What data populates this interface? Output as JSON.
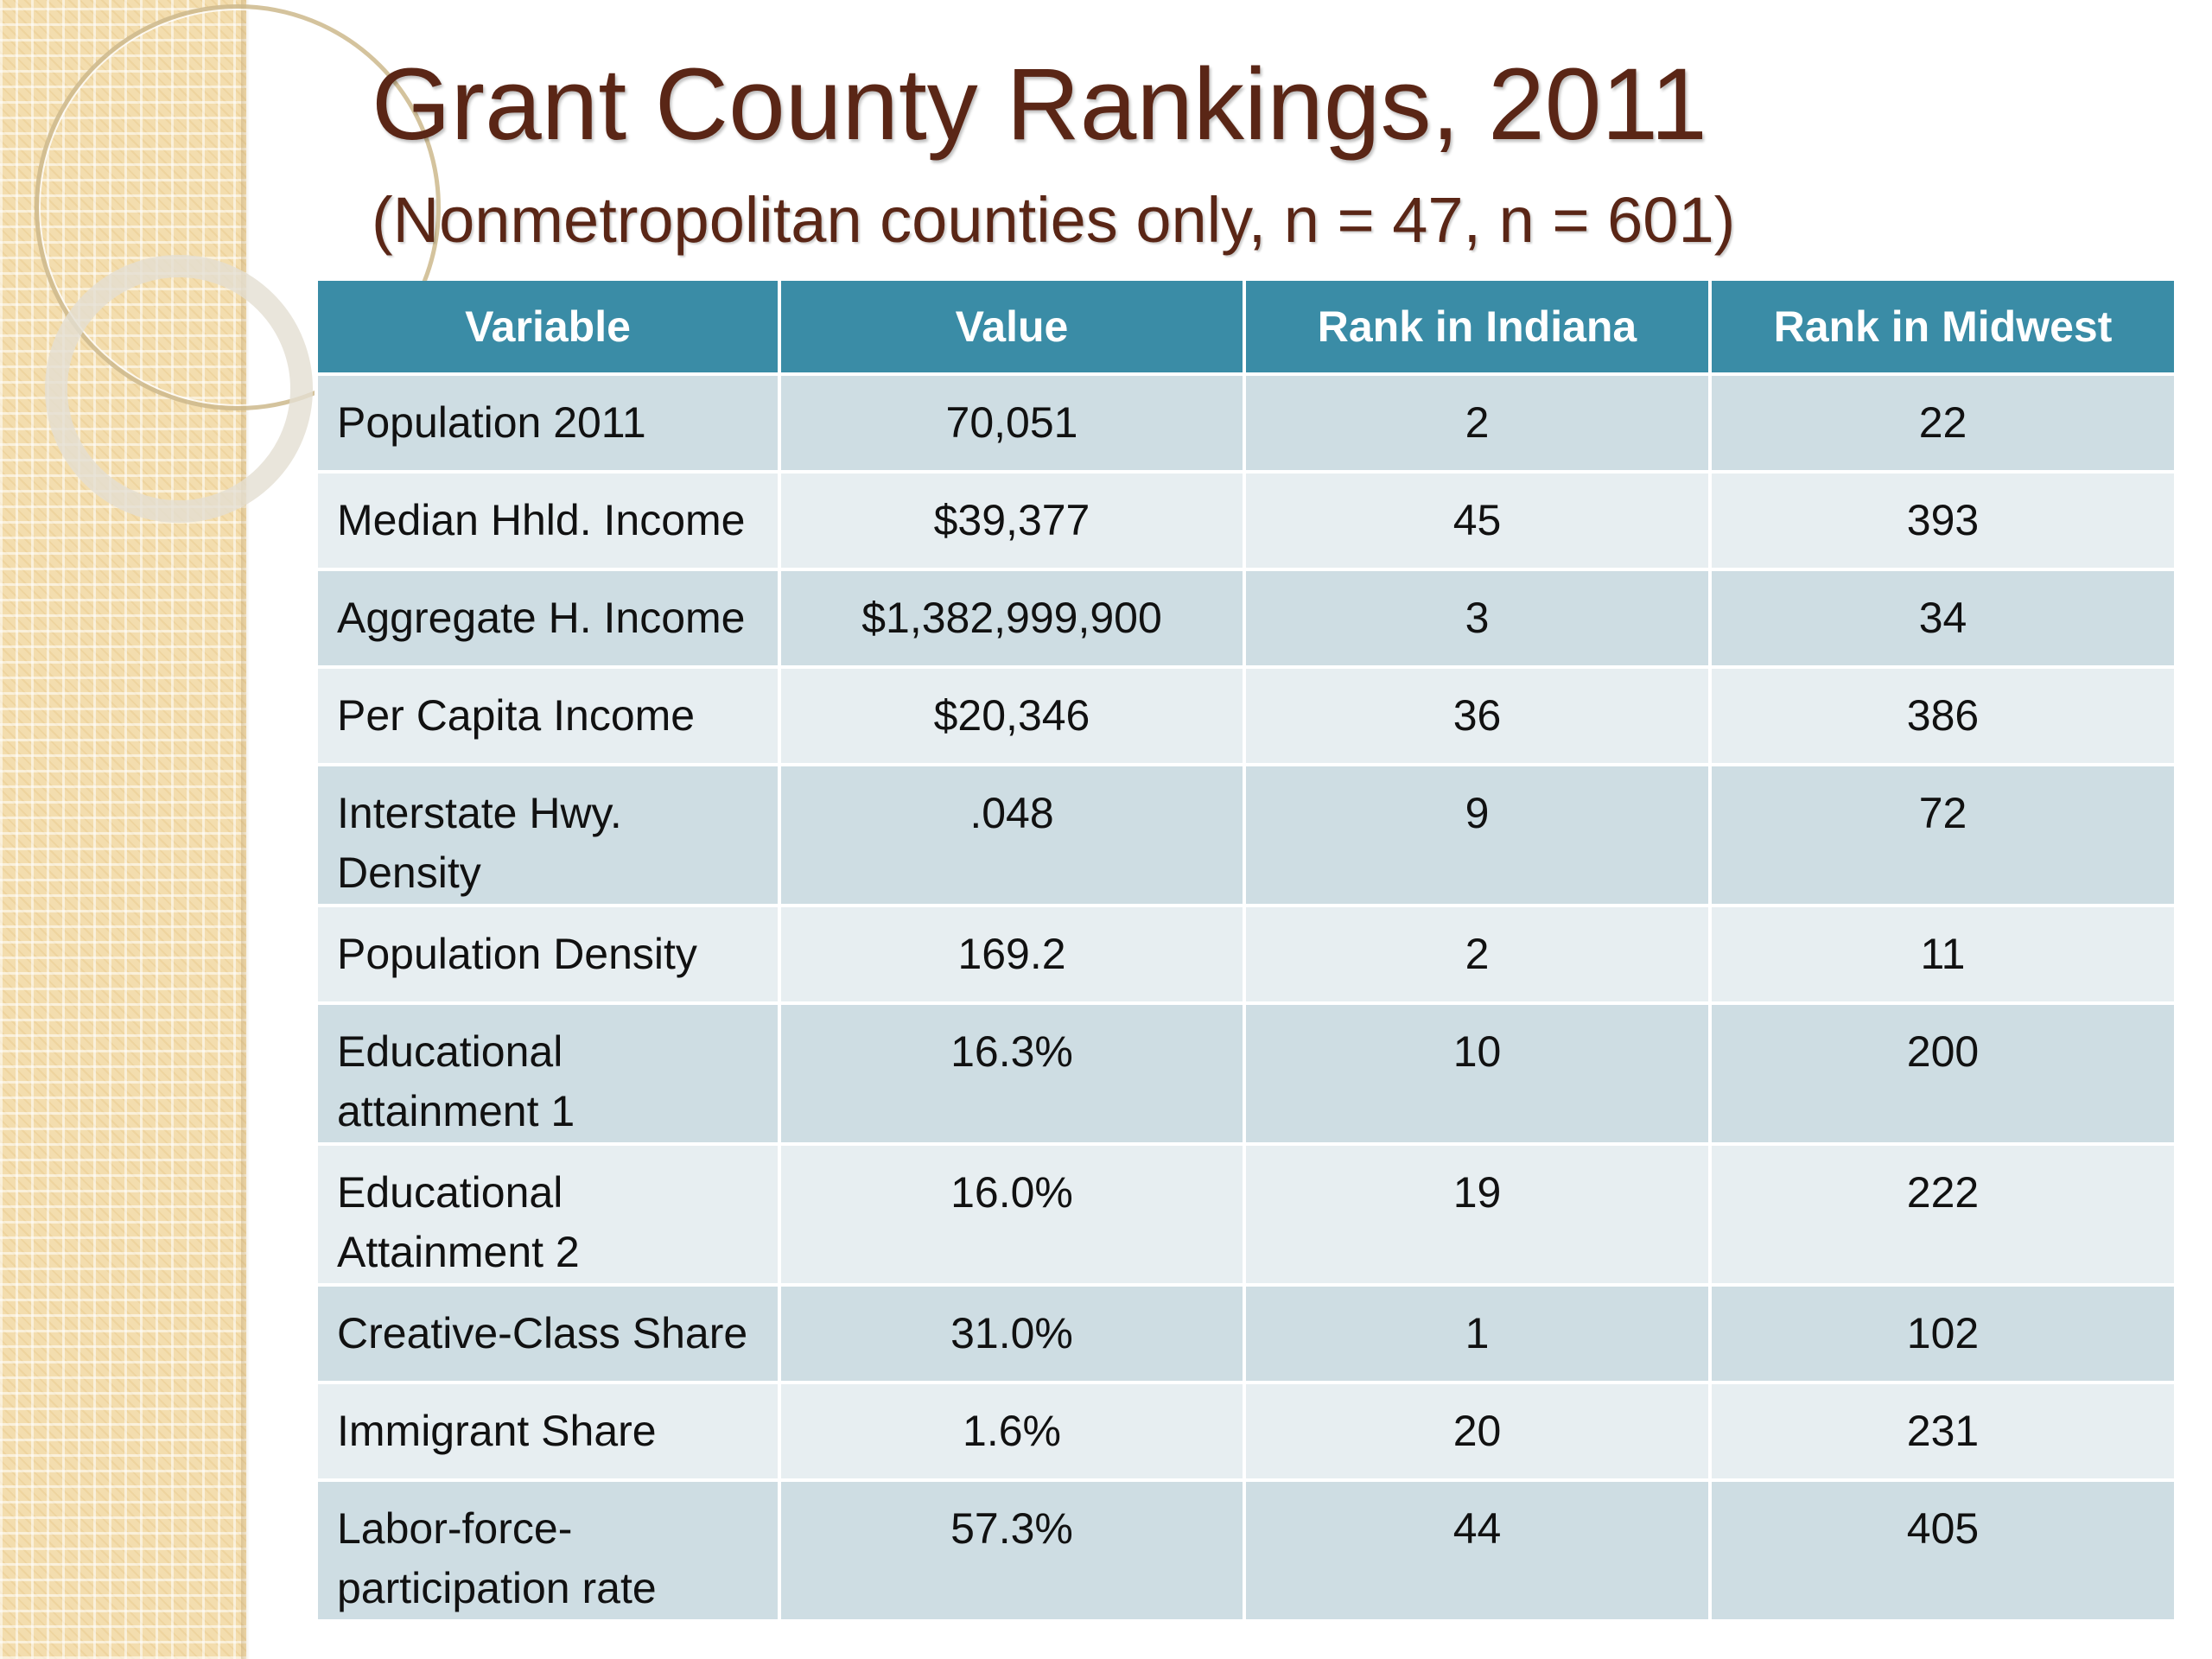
{
  "slide": {
    "title": "Grant County Rankings, 2011",
    "subtitle": "(Nonmetropolitan counties only, n = 47, n = 601)"
  },
  "table": {
    "headers": [
      "Variable",
      "Value",
      "Rank in Indiana",
      "Rank in Midwest"
    ],
    "rows": [
      {
        "variable": "Population 2011",
        "value": "70,051",
        "rank_indiana": "2",
        "rank_midwest": "22"
      },
      {
        "variable": "Median Hhld. Income",
        "value": "$39,377",
        "rank_indiana": "45",
        "rank_midwest": "393"
      },
      {
        "variable": "Aggregate H. Income",
        "value": "$1,382,999,900",
        "rank_indiana": "3",
        "rank_midwest": "34"
      },
      {
        "variable": "Per Capita Income",
        "value": "$20,346",
        "rank_indiana": "36",
        "rank_midwest": "386"
      },
      {
        "variable": "Interstate Hwy. Density",
        "value": ".048",
        "rank_indiana": "9",
        "rank_midwest": "72"
      },
      {
        "variable": "Population Density",
        "value": "169.2",
        "rank_indiana": "2",
        "rank_midwest": "11"
      },
      {
        "variable": "Educational attainment 1",
        "value": "16.3%",
        "rank_indiana": "10",
        "rank_midwest": "200"
      },
      {
        "variable": "Educational Attainment 2",
        "value": "16.0%",
        "rank_indiana": "19",
        "rank_midwest": "222"
      },
      {
        "variable": "Creative-Class Share",
        "value": "31.0%",
        "rank_indiana": "1",
        "rank_midwest": "102"
      },
      {
        "variable": "Immigrant Share",
        "value": "1.6%",
        "rank_indiana": "20",
        "rank_midwest": "231"
      },
      {
        "variable": "Labor-force-participation rate",
        "value": "57.3%",
        "rank_indiana": "44",
        "rank_midwest": "405"
      }
    ]
  },
  "colors": {
    "title": "#5a2616",
    "header_bg": "#3a8ca6",
    "row_dark": "#cedde3",
    "row_light": "#e7eef1",
    "side_strip": "#f3ddae"
  }
}
